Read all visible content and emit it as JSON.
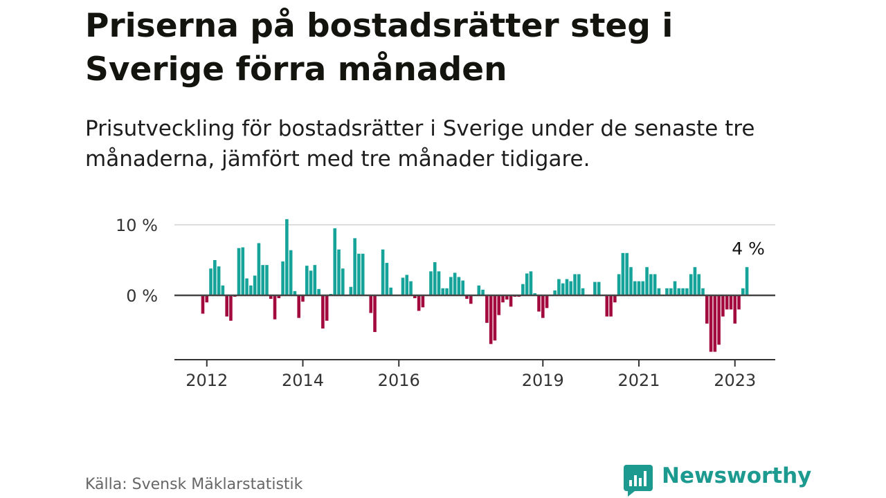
{
  "title": "Priserna på bostadsrätter steg i Sverige förra månaden",
  "subtitle": "Prisutveckling för bostadsrätter i Sverige under de senaste tre månaderna, jämfört med tre månader tidigare.",
  "source": "Källa: Svensk Mäklarstatistik",
  "logo": {
    "text": "Newsworthy",
    "icon": "bar-chart-speech-bubble-icon"
  },
  "colors": {
    "positive": "#16a39a",
    "negative": "#a30b3f",
    "logo": "#1d9a8f",
    "grid": "#dddddd",
    "baseline": "#444444"
  },
  "chart_data": {
    "type": "bar",
    "x_start": "2011-12",
    "x_end": "2023-06",
    "xticks": [
      {
        "label": "2012",
        "date": "2012-01"
      },
      {
        "label": "2014",
        "date": "2014-01"
      },
      {
        "label": "2016",
        "date": "2016-01"
      },
      {
        "label": "2019",
        "date": "2019-01"
      },
      {
        "label": "2021",
        "date": "2021-01"
      },
      {
        "label": "2023",
        "date": "2023-01"
      }
    ],
    "yticks": [
      {
        "value": 0,
        "label": "0 %"
      },
      {
        "value": 10,
        "label": "10 %"
      }
    ],
    "ylim": [
      -9,
      10.5
    ],
    "annotation": "4 %",
    "series": [
      {
        "values": [
          {
            "x": "2011-12",
            "y": -2.6
          },
          {
            "x": "2012-01",
            "y": -1.0
          },
          {
            "x": "2012-02",
            "y": 3.8
          },
          {
            "x": "2012-03",
            "y": 5.0
          },
          {
            "x": "2012-04",
            "y": 4.1
          },
          {
            "x": "2012-05",
            "y": 1.4
          },
          {
            "x": "2012-06",
            "y": -3.0
          },
          {
            "x": "2012-07",
            "y": -3.6
          },
          {
            "x": "2012-08",
            "y": -0.2
          },
          {
            "x": "2012-09",
            "y": 6.7
          },
          {
            "x": "2012-10",
            "y": 6.8
          },
          {
            "x": "2012-11",
            "y": 2.4
          },
          {
            "x": "2012-12",
            "y": 1.4
          },
          {
            "x": "2013-01",
            "y": 2.8
          },
          {
            "x": "2013-02",
            "y": 7.4
          },
          {
            "x": "2013-03",
            "y": 4.3
          },
          {
            "x": "2013-04",
            "y": 4.3
          },
          {
            "x": "2013-05",
            "y": -0.5
          },
          {
            "x": "2013-06",
            "y": -3.4
          },
          {
            "x": "2013-07",
            "y": -0.4
          },
          {
            "x": "2013-08",
            "y": 4.8
          },
          {
            "x": "2013-09",
            "y": 10.8
          },
          {
            "x": "2013-10",
            "y": 6.4
          },
          {
            "x": "2013-11",
            "y": 0.6
          },
          {
            "x": "2013-12",
            "y": -3.2
          },
          {
            "x": "2014-01",
            "y": -0.9
          },
          {
            "x": "2014-02",
            "y": 4.2
          },
          {
            "x": "2014-03",
            "y": 3.5
          },
          {
            "x": "2014-04",
            "y": 4.3
          },
          {
            "x": "2014-05",
            "y": 0.9
          },
          {
            "x": "2014-06",
            "y": -4.7
          },
          {
            "x": "2014-07",
            "y": -3.6
          },
          {
            "x": "2014-08",
            "y": 0.2
          },
          {
            "x": "2014-09",
            "y": 9.5
          },
          {
            "x": "2014-10",
            "y": 6.5
          },
          {
            "x": "2014-11",
            "y": 3.8
          },
          {
            "x": "2014-12",
            "y": -0.1
          },
          {
            "x": "2015-01",
            "y": 1.2
          },
          {
            "x": "2015-02",
            "y": 8.1
          },
          {
            "x": "2015-03",
            "y": 5.9
          },
          {
            "x": "2015-04",
            "y": 5.9
          },
          {
            "x": "2015-05",
            "y": -0.1
          },
          {
            "x": "2015-06",
            "y": -2.5
          },
          {
            "x": "2015-07",
            "y": -5.2
          },
          {
            "x": "2015-08",
            "y": 0.1
          },
          {
            "x": "2015-09",
            "y": 6.5
          },
          {
            "x": "2015-10",
            "y": 4.6
          },
          {
            "x": "2015-11",
            "y": 1.1
          },
          {
            "x": "2015-12",
            "y": -0.1
          },
          {
            "x": "2016-01",
            "y": 0.1
          },
          {
            "x": "2016-02",
            "y": 2.5
          },
          {
            "x": "2016-03",
            "y": 2.9
          },
          {
            "x": "2016-04",
            "y": 2.0
          },
          {
            "x": "2016-05",
            "y": -0.4
          },
          {
            "x": "2016-06",
            "y": -2.2
          },
          {
            "x": "2016-07",
            "y": -1.7
          },
          {
            "x": "2016-08",
            "y": 0.1
          },
          {
            "x": "2016-09",
            "y": 3.4
          },
          {
            "x": "2016-10",
            "y": 4.7
          },
          {
            "x": "2016-11",
            "y": 3.4
          },
          {
            "x": "2016-12",
            "y": 1.0
          },
          {
            "x": "2017-01",
            "y": 1.0
          },
          {
            "x": "2017-02",
            "y": 2.6
          },
          {
            "x": "2017-03",
            "y": 3.2
          },
          {
            "x": "2017-04",
            "y": 2.6
          },
          {
            "x": "2017-05",
            "y": 2.1
          },
          {
            "x": "2017-06",
            "y": -0.5
          },
          {
            "x": "2017-07",
            "y": -1.2
          },
          {
            "x": "2017-08",
            "y": 0.1
          },
          {
            "x": "2017-09",
            "y": 1.4
          },
          {
            "x": "2017-10",
            "y": 0.8
          },
          {
            "x": "2017-11",
            "y": -3.9
          },
          {
            "x": "2017-12",
            "y": -6.9
          },
          {
            "x": "2018-01",
            "y": -6.4
          },
          {
            "x": "2018-02",
            "y": -2.8
          },
          {
            "x": "2018-03",
            "y": -1.0
          },
          {
            "x": "2018-04",
            "y": -0.6
          },
          {
            "x": "2018-05",
            "y": -1.6
          },
          {
            "x": "2018-06",
            "y": -0.2
          },
          {
            "x": "2018-07",
            "y": -0.2
          },
          {
            "x": "2018-08",
            "y": 1.6
          },
          {
            "x": "2018-09",
            "y": 3.1
          },
          {
            "x": "2018-10",
            "y": 3.4
          },
          {
            "x": "2018-11",
            "y": 0.3
          },
          {
            "x": "2018-12",
            "y": -2.3
          },
          {
            "x": "2019-01",
            "y": -3.2
          },
          {
            "x": "2019-02",
            "y": -1.8
          },
          {
            "x": "2019-03",
            "y": 0.1
          },
          {
            "x": "2019-04",
            "y": 0.7
          },
          {
            "x": "2019-05",
            "y": 2.3
          },
          {
            "x": "2019-06",
            "y": 1.7
          },
          {
            "x": "2019-07",
            "y": 2.3
          },
          {
            "x": "2019-08",
            "y": 2.0
          },
          {
            "x": "2019-09",
            "y": 3.0
          },
          {
            "x": "2019-10",
            "y": 3.0
          },
          {
            "x": "2019-11",
            "y": 1.0
          },
          {
            "x": "2019-12",
            "y": 0.1
          },
          {
            "x": "2020-01",
            "y": 0.1
          },
          {
            "x": "2020-02",
            "y": 1.9
          },
          {
            "x": "2020-03",
            "y": 1.9
          },
          {
            "x": "2020-04",
            "y": 0.1
          },
          {
            "x": "2020-05",
            "y": -3.0
          },
          {
            "x": "2020-06",
            "y": -3.0
          },
          {
            "x": "2020-07",
            "y": -1.0
          },
          {
            "x": "2020-08",
            "y": 3.0
          },
          {
            "x": "2020-09",
            "y": 6.0
          },
          {
            "x": "2020-10",
            "y": 6.0
          },
          {
            "x": "2020-11",
            "y": 4.0
          },
          {
            "x": "2020-12",
            "y": 2.0
          },
          {
            "x": "2021-01",
            "y": 2.0
          },
          {
            "x": "2021-02",
            "y": 2.0
          },
          {
            "x": "2021-03",
            "y": 4.0
          },
          {
            "x": "2021-04",
            "y": 3.0
          },
          {
            "x": "2021-05",
            "y": 3.0
          },
          {
            "x": "2021-06",
            "y": 1.0
          },
          {
            "x": "2021-07",
            "y": 0.1
          },
          {
            "x": "2021-08",
            "y": 1.0
          },
          {
            "x": "2021-09",
            "y": 1.0
          },
          {
            "x": "2021-10",
            "y": 2.0
          },
          {
            "x": "2021-11",
            "y": 1.0
          },
          {
            "x": "2021-12",
            "y": 1.0
          },
          {
            "x": "2022-01",
            "y": 1.0
          },
          {
            "x": "2022-02",
            "y": 3.0
          },
          {
            "x": "2022-03",
            "y": 4.0
          },
          {
            "x": "2022-04",
            "y": 3.0
          },
          {
            "x": "2022-05",
            "y": 1.0
          },
          {
            "x": "2022-06",
            "y": -4.0
          },
          {
            "x": "2022-07",
            "y": -8.0
          },
          {
            "x": "2022-08",
            "y": -8.0
          },
          {
            "x": "2022-09",
            "y": -7.0
          },
          {
            "x": "2022-10",
            "y": -3.0
          },
          {
            "x": "2022-11",
            "y": -2.0
          },
          {
            "x": "2022-12",
            "y": -2.0
          },
          {
            "x": "2023-01",
            "y": -4.0
          },
          {
            "x": "2023-02",
            "y": -2.0
          },
          {
            "x": "2023-03",
            "y": 1.0
          },
          {
            "x": "2023-04",
            "y": 4.0
          }
        ]
      }
    ]
  }
}
